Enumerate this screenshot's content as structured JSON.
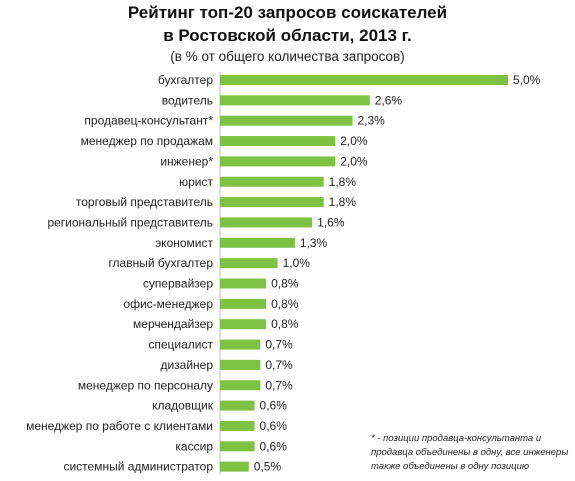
{
  "chart_data": {
    "type": "bar",
    "orientation": "horizontal",
    "title": "Рейтинг топ-20 запросов соискателей",
    "title_line2": "в Ростовской области, 2013 г.",
    "subtitle": "(в % от общего количества запросов)",
    "categories": [
      "бухгалтер",
      "водитель",
      "продавец-консультант*",
      "менеджер по продажам",
      "инженер*",
      "юрист",
      "торговый представитель",
      "региональный представитель",
      "экономист",
      "главный бухгалтер",
      "супервайзер",
      "офис-менеджер",
      "мерчендайзер",
      "специалист",
      "дизайнер",
      "менеджер по персоналу",
      "кладовщик",
      "менеджер по работе с клиентами",
      "кассир",
      "системный администратор"
    ],
    "values": [
      5.0,
      2.6,
      2.3,
      2.0,
      2.0,
      1.8,
      1.8,
      1.6,
      1.3,
      1.0,
      0.8,
      0.8,
      0.8,
      0.7,
      0.7,
      0.7,
      0.6,
      0.6,
      0.6,
      0.5
    ],
    "value_labels": [
      "5,0%",
      "2,6%",
      "2,3%",
      "2,0%",
      "2,0%",
      "1,8%",
      "1,8%",
      "1,6%",
      "1,3%",
      "1,0%",
      "0,8%",
      "0,8%",
      "0,8%",
      "0,7%",
      "0,7%",
      "0,7%",
      "0,6%",
      "0,6%",
      "0,6%",
      "0,5%"
    ],
    "xlim": [
      0,
      5.0
    ],
    "grid": false,
    "bar_color": "#7dc242",
    "footnote": "* - позиции продавца-консультанта и продавца объединены в одну, все инженеры также объединены в одну позицию"
  }
}
